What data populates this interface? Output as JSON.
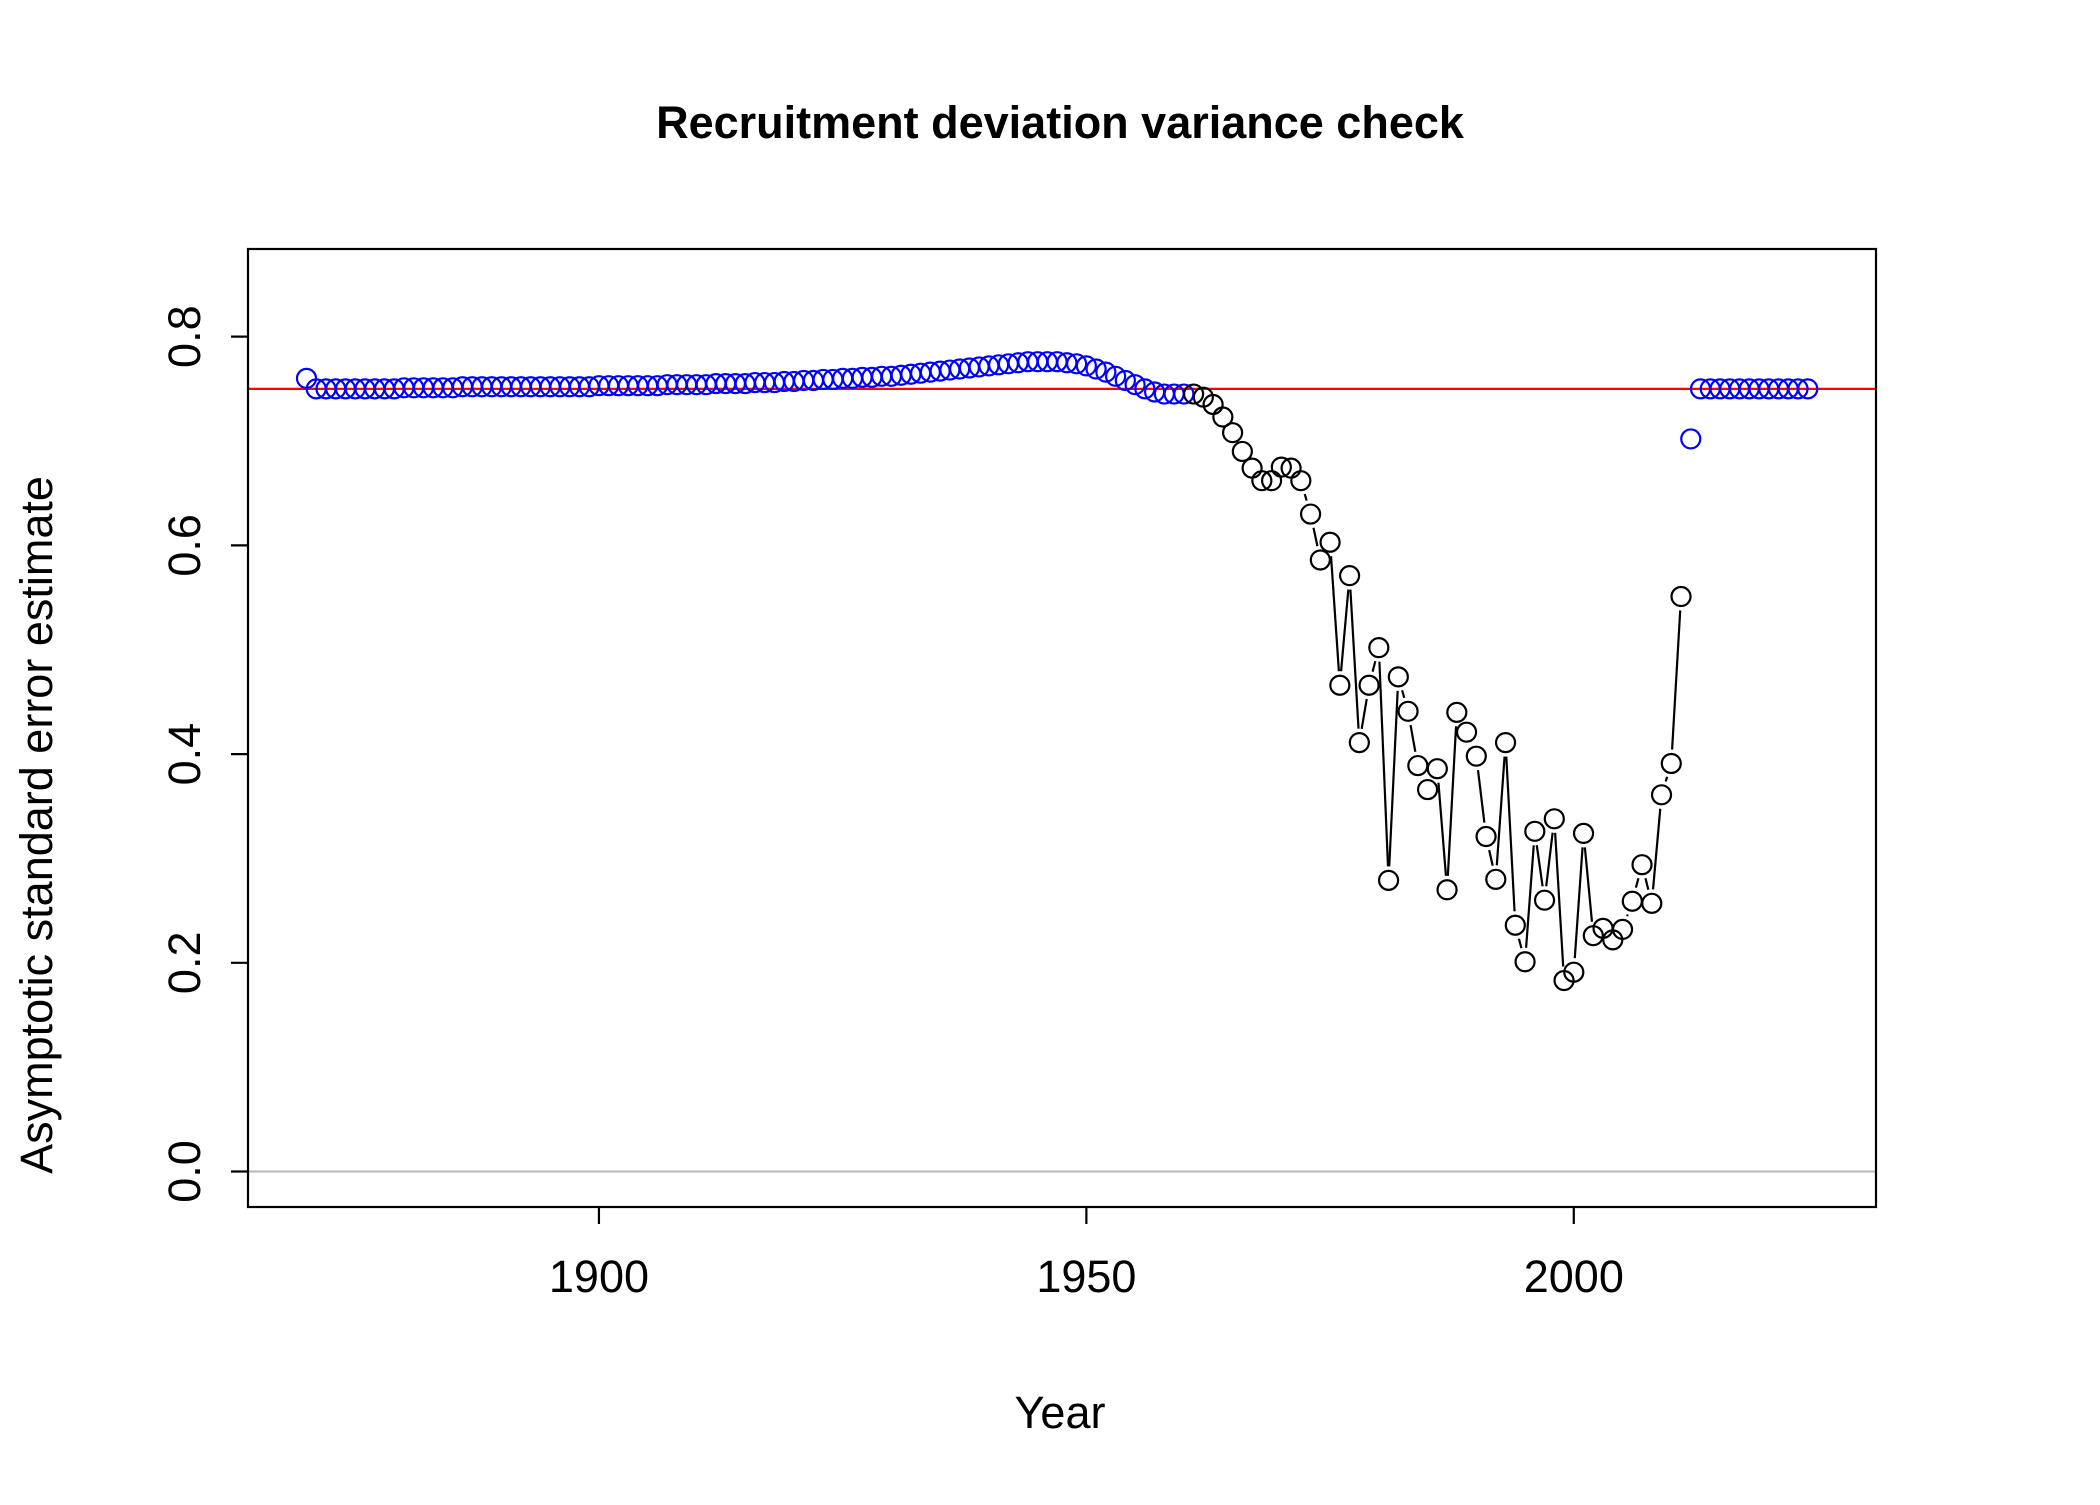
{
  "chart_data": {
    "type": "scatter",
    "title": "Recruitment deviation variance check",
    "xlabel": "Year",
    "ylabel": "Asymptotic standard error estimate",
    "xlim": [
      1864,
      2031
    ],
    "ylim": [
      -0.034,
      0.884
    ],
    "xticks": [
      1900,
      1950,
      2000
    ],
    "yticks": [
      0.0,
      0.2,
      0.4,
      0.6,
      0.8
    ],
    "xtick_labels": [
      "1900",
      "1950",
      "2000"
    ],
    "ytick_labels": [
      "0.0",
      "0.2",
      "0.4",
      "0.6",
      "0.8"
    ],
    "grid": false,
    "legend": "none",
    "reference_lines": [
      {
        "y": 0.75,
        "color": "#ff0000"
      },
      {
        "y": 0.0,
        "color": "#bebebe"
      }
    ],
    "colors": {
      "early_and_forecast_points": "#0000ff",
      "main_period_points": "#000000",
      "main_period_line": "#000000"
    },
    "series": [
      {
        "color": "#0000ff",
        "marker": "open-circle",
        "line": false,
        "x": [
          1870,
          1871,
          1872,
          1873,
          1874,
          1875,
          1876,
          1877,
          1878,
          1879,
          1880,
          1881,
          1882,
          1883,
          1884,
          1885,
          1886,
          1887,
          1888,
          1889,
          1890,
          1891,
          1892,
          1893,
          1894,
          1895,
          1896,
          1897,
          1898,
          1899,
          1900,
          1901,
          1902,
          1903,
          1904,
          1905,
          1906,
          1907,
          1908,
          1909,
          1910,
          1911,
          1912,
          1913,
          1914,
          1915,
          1916,
          1917,
          1918,
          1919,
          1920,
          1921,
          1922,
          1923,
          1924,
          1925,
          1926,
          1927,
          1928,
          1929,
          1930,
          1931,
          1932,
          1933,
          1934,
          1935,
          1936,
          1937,
          1938,
          1939,
          1940,
          1941,
          1942,
          1943,
          1944,
          1945,
          1946,
          1947,
          1948,
          1949,
          1950,
          1951,
          1952,
          1953,
          1954,
          1955,
          1956,
          1957,
          1958,
          1959,
          1960
        ],
        "y": [
          0.76,
          0.75,
          0.75,
          0.75,
          0.75,
          0.75,
          0.75,
          0.75,
          0.75,
          0.75,
          0.751,
          0.751,
          0.751,
          0.751,
          0.751,
          0.751,
          0.752,
          0.752,
          0.752,
          0.752,
          0.752,
          0.752,
          0.752,
          0.752,
          0.752,
          0.752,
          0.752,
          0.752,
          0.752,
          0.752,
          0.753,
          0.753,
          0.753,
          0.753,
          0.753,
          0.753,
          0.753,
          0.754,
          0.754,
          0.754,
          0.754,
          0.754,
          0.755,
          0.755,
          0.755,
          0.755,
          0.756,
          0.756,
          0.756,
          0.757,
          0.757,
          0.758,
          0.758,
          0.759,
          0.759,
          0.76,
          0.76,
          0.761,
          0.761,
          0.762,
          0.762,
          0.763,
          0.764,
          0.765,
          0.766,
          0.767,
          0.768,
          0.769,
          0.77,
          0.771,
          0.772,
          0.773,
          0.774,
          0.775,
          0.776,
          0.776,
          0.776,
          0.776,
          0.775,
          0.774,
          0.772,
          0.769,
          0.766,
          0.762,
          0.758,
          0.754,
          0.75,
          0.747,
          0.745,
          0.745,
          0.745
        ]
      },
      {
        "color": "#000000",
        "marker": "open-circle",
        "line": true,
        "x": [
          1961,
          1962,
          1963,
          1964,
          1965,
          1966,
          1967,
          1968,
          1969,
          1970,
          1971,
          1972,
          1973,
          1974,
          1975,
          1976,
          1977,
          1978,
          1979,
          1980,
          1981,
          1982,
          1983,
          1984,
          1985,
          1986,
          1987,
          1988,
          1989,
          1990,
          1991,
          1992,
          1993,
          1994,
          1995,
          1996,
          1997,
          1998,
          1999,
          2000,
          2001,
          2002,
          2003,
          2004,
          2005,
          2006,
          2007,
          2008,
          2009,
          2010,
          2011
        ],
        "y": [
          0.745,
          0.742,
          0.735,
          0.723,
          0.708,
          0.69,
          0.674,
          0.662,
          0.662,
          0.675,
          0.674,
          0.662,
          0.63,
          0.586,
          0.603,
          0.466,
          0.571,
          0.411,
          0.466,
          0.502,
          0.279,
          0.474,
          0.441,
          0.389,
          0.366,
          0.386,
          0.27,
          0.44,
          0.421,
          0.398,
          0.321,
          0.28,
          0.411,
          0.236,
          0.201,
          0.326,
          0.26,
          0.338,
          0.183,
          0.191,
          0.324,
          0.226,
          0.233,
          0.222,
          0.232,
          0.259,
          0.294,
          0.257,
          0.361,
          0.391,
          0.551
        ]
      },
      {
        "color": "#0000ff",
        "marker": "open-circle",
        "line": false,
        "x": [
          2012,
          2013,
          2014,
          2015,
          2016,
          2017,
          2018,
          2019,
          2020,
          2021,
          2022,
          2023,
          2024
        ],
        "y": [
          0.702,
          0.75,
          0.75,
          0.75,
          0.75,
          0.75,
          0.75,
          0.75,
          0.75,
          0.75,
          0.75,
          0.75,
          0.75
        ]
      }
    ]
  }
}
